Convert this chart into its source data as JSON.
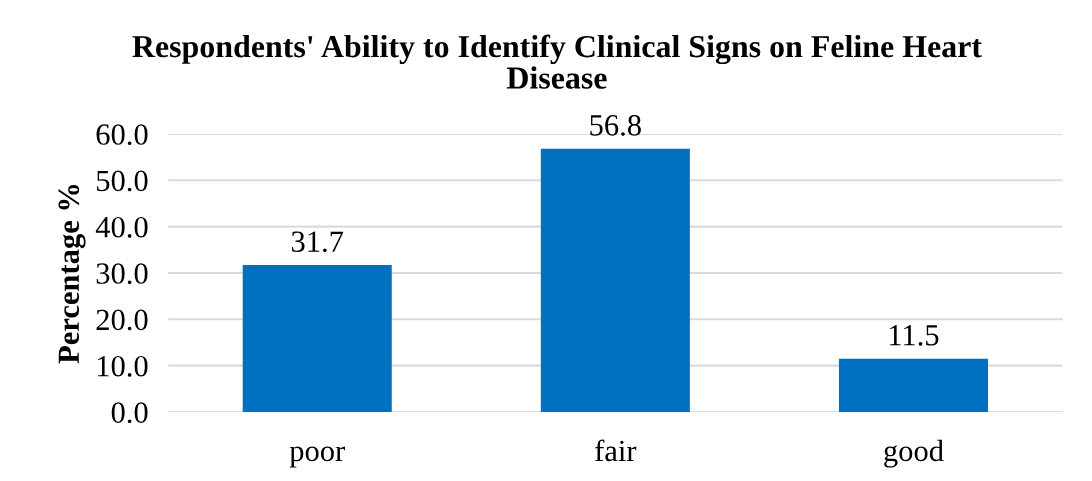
{
  "chart_data": {
    "type": "bar",
    "title": "Respondents' Ability to Identify Clinical Signs on Feline Heart\nDisease",
    "ylabel": "Percentage %",
    "categories": [
      "poor",
      "fair",
      "good"
    ],
    "values": [
      31.7,
      56.8,
      11.5
    ],
    "color": "#0070c0",
    "ylim": [
      0,
      60
    ],
    "yticks": [
      {
        "value": 0,
        "label": "0.0"
      },
      {
        "value": 10,
        "label": "10.0"
      },
      {
        "value": 20,
        "label": "20.0"
      },
      {
        "value": 30,
        "label": "30.0"
      },
      {
        "value": 40,
        "label": "40.0"
      },
      {
        "value": 50,
        "label": "50.0"
      },
      {
        "value": 60,
        "label": "60.0"
      }
    ],
    "grid": "y",
    "data_labels": true,
    "legend": false
  }
}
